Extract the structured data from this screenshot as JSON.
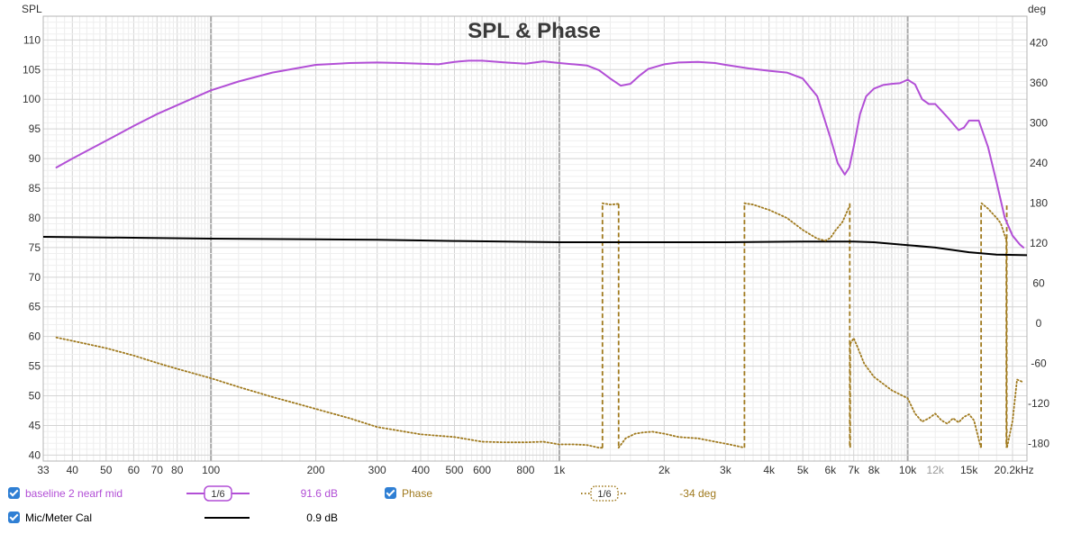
{
  "chart_data": {
    "type": "line",
    "title": "SPL & Phase",
    "ylabel": "SPL",
    "y2label": "deg",
    "xlabel": "",
    "x_scale": "log",
    "xlim": [
      33,
      22000
    ],
    "ylim": [
      39,
      114
    ],
    "y2lim": [
      -206,
      460
    ],
    "grid": true,
    "x_ticks": [
      {
        "v": 33,
        "t": "33"
      },
      {
        "v": 40,
        "t": "40"
      },
      {
        "v": 50,
        "t": "50"
      },
      {
        "v": 60,
        "t": "60"
      },
      {
        "v": 70,
        "t": "70"
      },
      {
        "v": 80,
        "t": "80"
      },
      {
        "v": 100,
        "t": "100"
      },
      {
        "v": 200,
        "t": "200"
      },
      {
        "v": 300,
        "t": "300"
      },
      {
        "v": 400,
        "t": "400"
      },
      {
        "v": 500,
        "t": "500"
      },
      {
        "v": 600,
        "t": "600"
      },
      {
        "v": 800,
        "t": "800"
      },
      {
        "v": 1000,
        "t": "1k"
      },
      {
        "v": 2000,
        "t": "2k"
      },
      {
        "v": 3000,
        "t": "3k"
      },
      {
        "v": 4000,
        "t": "4k"
      },
      {
        "v": 5000,
        "t": "5k"
      },
      {
        "v": 6000,
        "t": "6k"
      },
      {
        "v": 7000,
        "t": "7k"
      },
      {
        "v": 8000,
        "t": "8k"
      },
      {
        "v": 10000,
        "t": "10k"
      },
      {
        "v": 12000,
        "t": "12k",
        "faint": true
      },
      {
        "v": 15000,
        "t": "15k"
      },
      {
        "v": 20200,
        "t": "20.2kHz"
      }
    ],
    "y_ticks": [
      40,
      45,
      50,
      55,
      60,
      65,
      70,
      75,
      80,
      85,
      90,
      95,
      100,
      105,
      110
    ],
    "y2_ticks": [
      -180,
      -120,
      -60,
      0,
      60,
      120,
      180,
      240,
      300,
      360,
      420
    ],
    "series": [
      {
        "name": "baseline 2 nearf mid",
        "axis": "left",
        "color": "#b24fd6",
        "dash": "solid",
        "x": [
          36,
          40,
          50,
          60,
          70,
          80,
          100,
          120,
          150,
          200,
          250,
          300,
          350,
          400,
          450,
          500,
          550,
          600,
          700,
          800,
          900,
          1000,
          1100,
          1200,
          1300,
          1400,
          1500,
          1600,
          1700,
          1800,
          2000,
          2200,
          2500,
          2800,
          3000,
          3500,
          4000,
          4500,
          5000,
          5500,
          6000,
          6300,
          6600,
          6800,
          7000,
          7300,
          7600,
          8000,
          8500,
          9000,
          9500,
          10000,
          10500,
          11000,
          11500,
          12000,
          13000,
          14000,
          14500,
          15000,
          16000,
          17000,
          18000,
          19000,
          20000,
          21000,
          21500
        ],
        "y": [
          88.5,
          90,
          93,
          95.5,
          97.5,
          99,
          101.5,
          103,
          104.5,
          105.8,
          106.1,
          106.2,
          106.1,
          106,
          105.9,
          106.3,
          106.5,
          106.5,
          106.2,
          106,
          106.4,
          106.1,
          105.9,
          105.7,
          104.9,
          103.5,
          102.3,
          102.6,
          104,
          105.1,
          105.9,
          106.2,
          106.3,
          106.1,
          105.8,
          105.2,
          104.8,
          104.5,
          103.5,
          100.5,
          93.5,
          89.2,
          87.3,
          88.5,
          92,
          97.5,
          100.5,
          101.8,
          102.4,
          102.6,
          102.7,
          103.3,
          102.5,
          100,
          99.2,
          99.2,
          97,
          94.8,
          95.2,
          96.4,
          96.4,
          92,
          86,
          80,
          77,
          75.5,
          75
        ]
      },
      {
        "name": "Mic/Meter Cal",
        "axis": "left",
        "color": "#000000",
        "dash": "solid",
        "x": [
          33,
          50,
          100,
          200,
          300,
          400,
          500,
          700,
          1000,
          1500,
          2000,
          3000,
          5000,
          7000,
          8000,
          10000,
          12000,
          15000,
          18000,
          22000
        ],
        "y": [
          76.8,
          76.7,
          76.5,
          76.4,
          76.3,
          76.2,
          76.1,
          76,
          75.9,
          75.9,
          75.9,
          75.9,
          76,
          76,
          75.9,
          75.4,
          75,
          74.2,
          73.8,
          73.7
        ]
      },
      {
        "name": "Phase",
        "axis": "right",
        "color": "#a07a1e",
        "dash": "dot",
        "x": [
          36,
          40,
          50,
          60,
          70,
          80,
          100,
          120,
          150,
          200,
          250,
          300,
          400,
          500,
          600,
          700,
          800,
          900,
          1000,
          1100,
          1200,
          1300,
          1330
        ],
        "y": [
          -21,
          -26,
          -37,
          -48,
          -59,
          -68,
          -82,
          -95,
          -110,
          -128,
          -142,
          -155,
          -166,
          -170,
          -177,
          -178,
          -178,
          -177,
          -181,
          -181,
          -182,
          -186,
          -186
        ]
      },
      {
        "name": "Phase",
        "axis": "right",
        "color": "#a07a1e",
        "dash": "dot",
        "x": [
          1330,
          1400,
          1480
        ],
        "y": [
          180,
          178,
          179
        ]
      },
      {
        "name": "Phase",
        "axis": "right",
        "color": "#a07a1e",
        "dash": "dot",
        "x": [
          1480,
          1550,
          1650,
          1750,
          1850,
          2000,
          2200,
          2500,
          2800,
          3000,
          3200,
          3400
        ],
        "y": [
          -186,
          -172,
          -165,
          -163,
          -162,
          -165,
          -170,
          -172,
          -177,
          -180,
          -183,
          -186
        ]
      },
      {
        "name": "Phase",
        "axis": "right",
        "color": "#a07a1e",
        "dash": "dot",
        "x": [
          3400,
          3600,
          4000,
          4500,
          5000,
          5500,
          5800,
          6000,
          6200,
          6500,
          6800
        ],
        "y": [
          180,
          178,
          170,
          158,
          140,
          127,
          124,
          128,
          139,
          152,
          175
        ]
      },
      {
        "name": "Phase",
        "axis": "right",
        "color": "#a07a1e",
        "dash": "dot",
        "x": [
          6850,
          7000,
          7200,
          7500,
          8000,
          9000,
          10000,
          10500,
          11000,
          11500,
          12000,
          12500,
          13000,
          13500,
          14000,
          14500,
          15000,
          15500,
          16200
        ],
        "y": [
          -30,
          -22,
          -37,
          -60,
          -80,
          -100,
          -112,
          -135,
          -147,
          -142,
          -135,
          -145,
          -150,
          -142,
          -148,
          -140,
          -136,
          -145,
          -185
        ]
      },
      {
        "name": "Phase",
        "axis": "right",
        "color": "#a07a1e",
        "dash": "dot",
        "x": [
          16300,
          17000,
          18000,
          18500,
          19100
        ],
        "y": [
          180,
          172,
          158,
          150,
          128
        ]
      },
      {
        "name": "Phase",
        "axis": "right",
        "color": "#a07a1e",
        "dash": "dot",
        "x": [
          19300,
          20000,
          20600,
          21500
        ],
        "y": [
          -185,
          -146,
          -84,
          -88
        ]
      }
    ],
    "phase_wrap_jumps": [
      {
        "x": 1330,
        "from": -186,
        "to": 180
      },
      {
        "x": 1480,
        "from": 179,
        "to": -186
      },
      {
        "x": 3400,
        "from": -186,
        "to": 180
      },
      {
        "x": 6820,
        "from": 180,
        "to": -186
      },
      {
        "x": 6840,
        "from": -186,
        "to": -30
      },
      {
        "x": 16250,
        "from": -186,
        "to": 180
      },
      {
        "x": 19200,
        "from": 128,
        "to": -186
      },
      {
        "x": 19250,
        "from": -186,
        "to": 180
      }
    ]
  },
  "legend": {
    "row1": {
      "label": "baseline 2 nearf mid",
      "label_color": "#b24fd6",
      "smoothing": "1/6",
      "value": "91.6 dB",
      "value_color": "#b24fd6",
      "phase_label": "Phase",
      "phase_label_color": "#a07a1e",
      "phase_smoothing": "1/6",
      "phase_value": "-34 deg",
      "phase_value_color": "#a07a1e"
    },
    "row2": {
      "label": "Mic/Meter Cal",
      "label_color": "#000000",
      "value": "0.9 dB",
      "value_color": "#000000"
    },
    "checkbox_color": "#2f7fd4"
  }
}
